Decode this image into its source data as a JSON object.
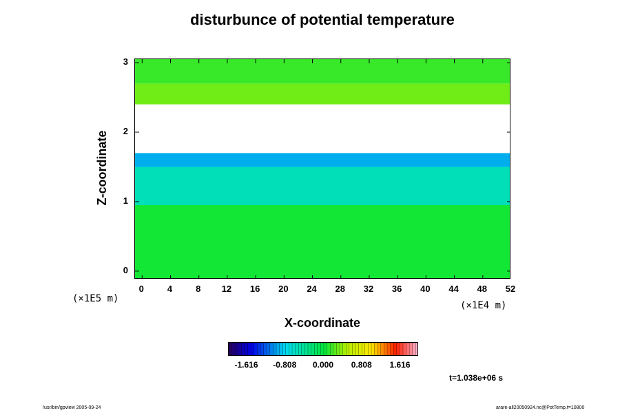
{
  "chart_data": {
    "type": "heatmap",
    "title": "disturbunce of potential temperature",
    "xlabel": "X-coordinate",
    "ylabel": "Z-coordinate",
    "x_unit": "(×1E4 m)",
    "y_unit": "(×1E5 m)",
    "xlim": [
      -1,
      52
    ],
    "ylim": [
      -0.12,
      3.05
    ],
    "x_ticks": [
      0,
      4,
      8,
      12,
      16,
      20,
      24,
      28,
      32,
      36,
      40,
      44,
      48,
      52
    ],
    "y_ticks": [
      0,
      1,
      2,
      3
    ],
    "colorbar": {
      "ticks": [
        "-1.616",
        "-0.808",
        "0.000",
        "0.808",
        "1.616"
      ],
      "range": [
        -2.0,
        2.0
      ]
    },
    "field_bands": [
      {
        "z_min": -0.12,
        "z_max": 0.95,
        "value": 0.05
      },
      {
        "z_min": 0.95,
        "z_max": 1.5,
        "value": -0.55
      },
      {
        "z_min": 1.5,
        "z_max": 1.7,
        "value": -0.95
      },
      {
        "z_min": 1.7,
        "z_max": 2.4,
        "value": "unbounded"
      },
      {
        "z_min": 2.4,
        "z_max": 2.7,
        "value": 0.3
      },
      {
        "z_min": 2.7,
        "z_max": 3.05,
        "value": 0.15
      }
    ],
    "time": "t=1.038e+06 s"
  },
  "footer": {
    "left": "/usr/bin/gpview 2005-09-24",
    "right": "arare-all20050924.nc@PotTemp,t=10800"
  },
  "colors": {
    "background": "#ffffff",
    "ink": "#000000"
  }
}
